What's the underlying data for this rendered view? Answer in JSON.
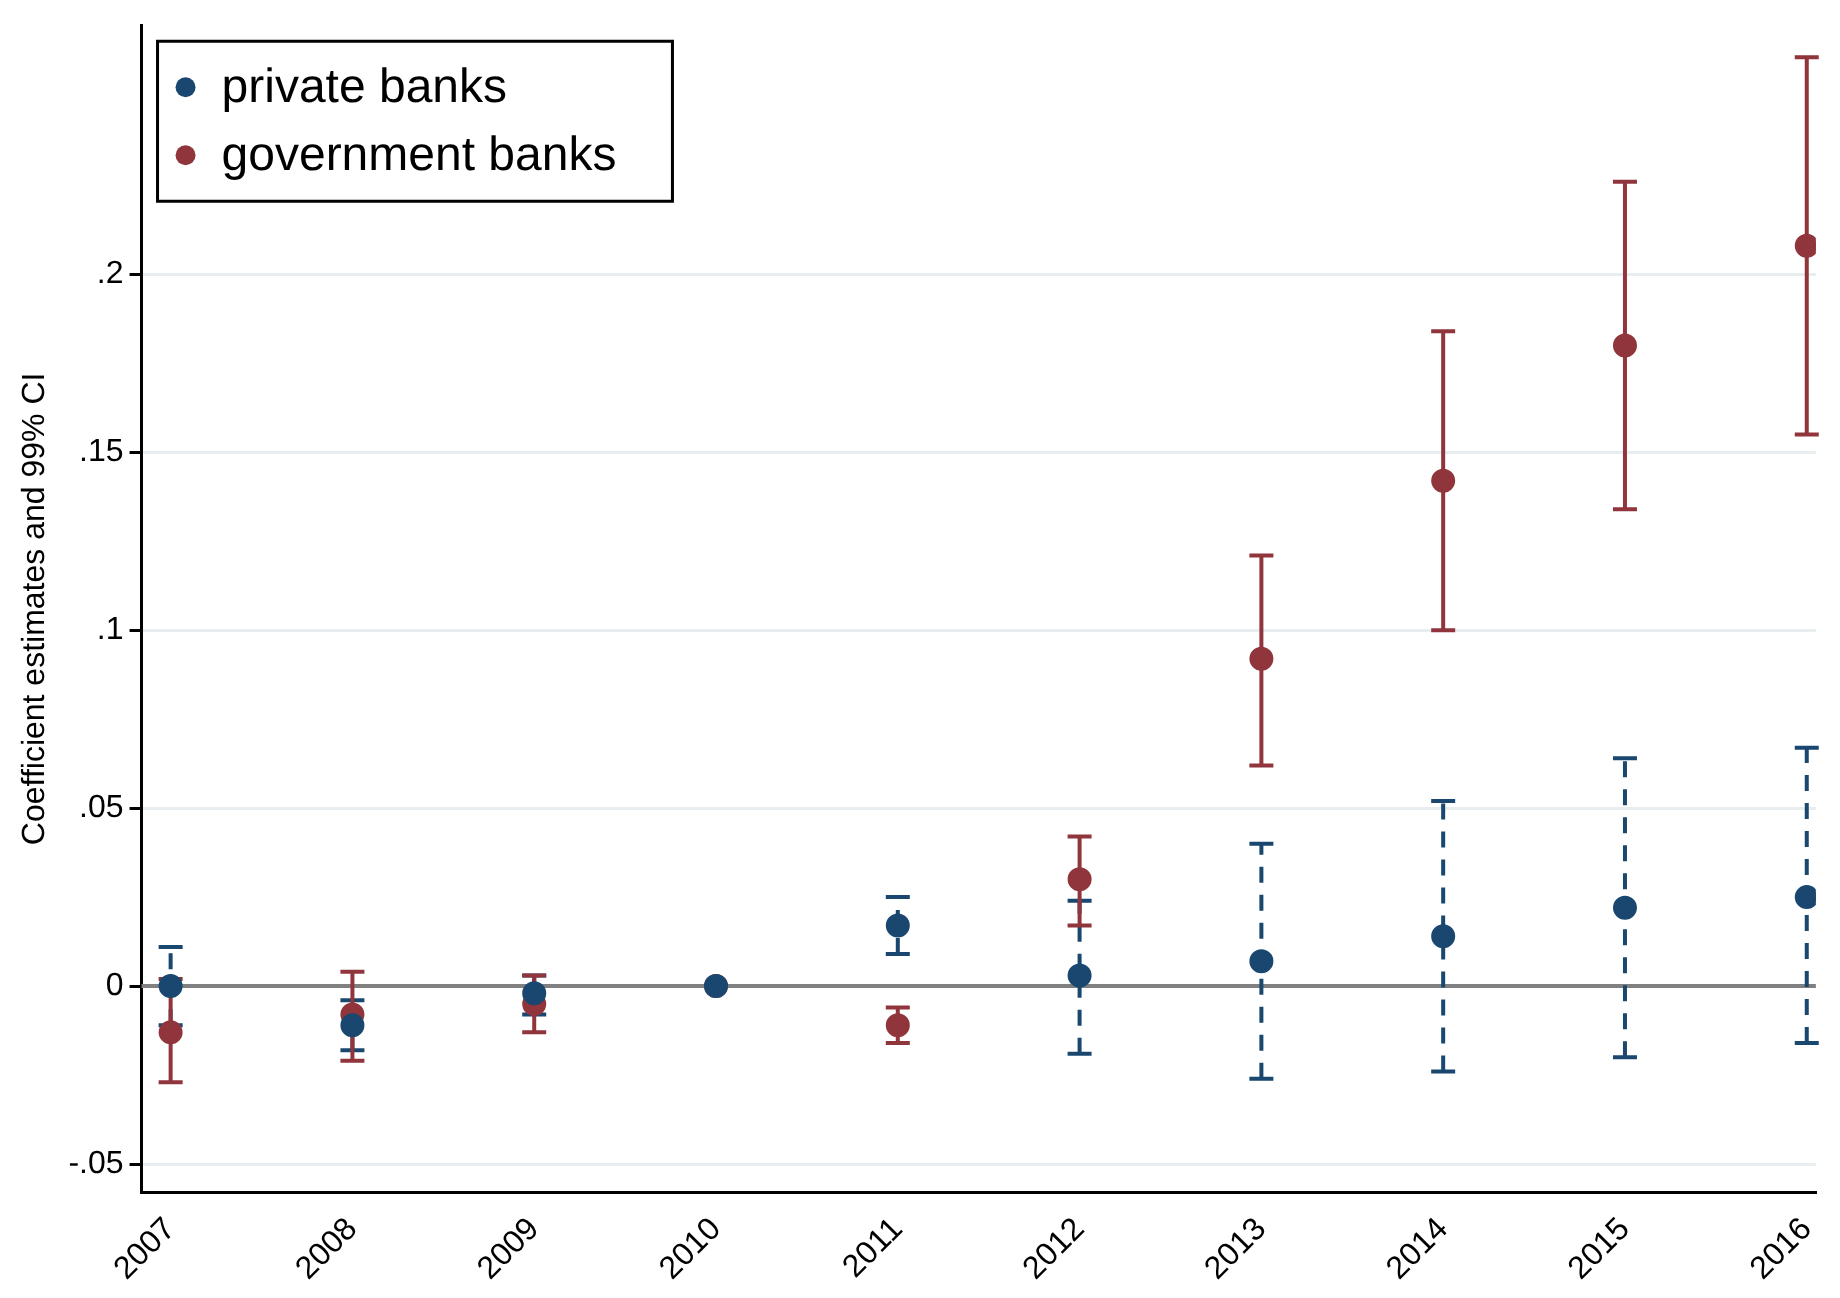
{
  "chart_data": {
    "type": "scatter",
    "ylabel": "Coefficient estimates and 99% CI",
    "categories": [
      "2007",
      "2008",
      "2009",
      "2010",
      "2011",
      "2012",
      "2013",
      "2014",
      "2015",
      "2016"
    ],
    "series": [
      {
        "name": "private banks",
        "color": "#1a476f",
        "line_style": "dashed",
        "values": [
          0,
          -0.011,
          -0.002,
          0,
          0.017,
          0.003,
          0.007,
          0.014,
          0.022,
          0.025
        ],
        "errors": [
          [
            -0.011,
            0.011
          ],
          [
            -0.018,
            -0.004
          ],
          [
            -0.008,
            0.003
          ],
          null,
          [
            0.009,
            0.025
          ],
          [
            -0.019,
            0.024
          ],
          [
            -0.026,
            0.04
          ],
          [
            -0.024,
            0.052
          ],
          [
            -0.02,
            0.064
          ],
          [
            -0.016,
            0.067
          ]
        ]
      },
      {
        "name": "government banks",
        "color": "#90353b",
        "line_style": "solid",
        "values": [
          -0.013,
          -0.008,
          -0.005,
          0,
          -0.011,
          0.03,
          0.092,
          0.142,
          0.18,
          0.208
        ],
        "errors": [
          [
            -0.027,
            0.002
          ],
          [
            -0.021,
            0.004
          ],
          [
            -0.013,
            0.003
          ],
          null,
          [
            -0.016,
            -0.006
          ],
          [
            0.017,
            0.042
          ],
          [
            0.062,
            0.121
          ],
          [
            0.1,
            0.184
          ],
          [
            0.134,
            0.226
          ],
          [
            0.155,
            0.261
          ]
        ]
      }
    ],
    "ylim": [
      -0.058,
      0.27
    ],
    "yticks": [
      {
        "value": -0.05,
        "label": "-.05"
      },
      {
        "value": 0,
        "label": "0"
      },
      {
        "value": 0.05,
        "label": ".05"
      },
      {
        "value": 0.1,
        "label": ".1"
      },
      {
        "value": 0.15,
        "label": ".15"
      },
      {
        "value": 0.2,
        "label": ".2"
      }
    ],
    "ref_lines": [
      {
        "axis": "y",
        "value": 0,
        "color": "#808080"
      }
    ],
    "grid": "y",
    "legend": "top left",
    "marker": "circle"
  }
}
